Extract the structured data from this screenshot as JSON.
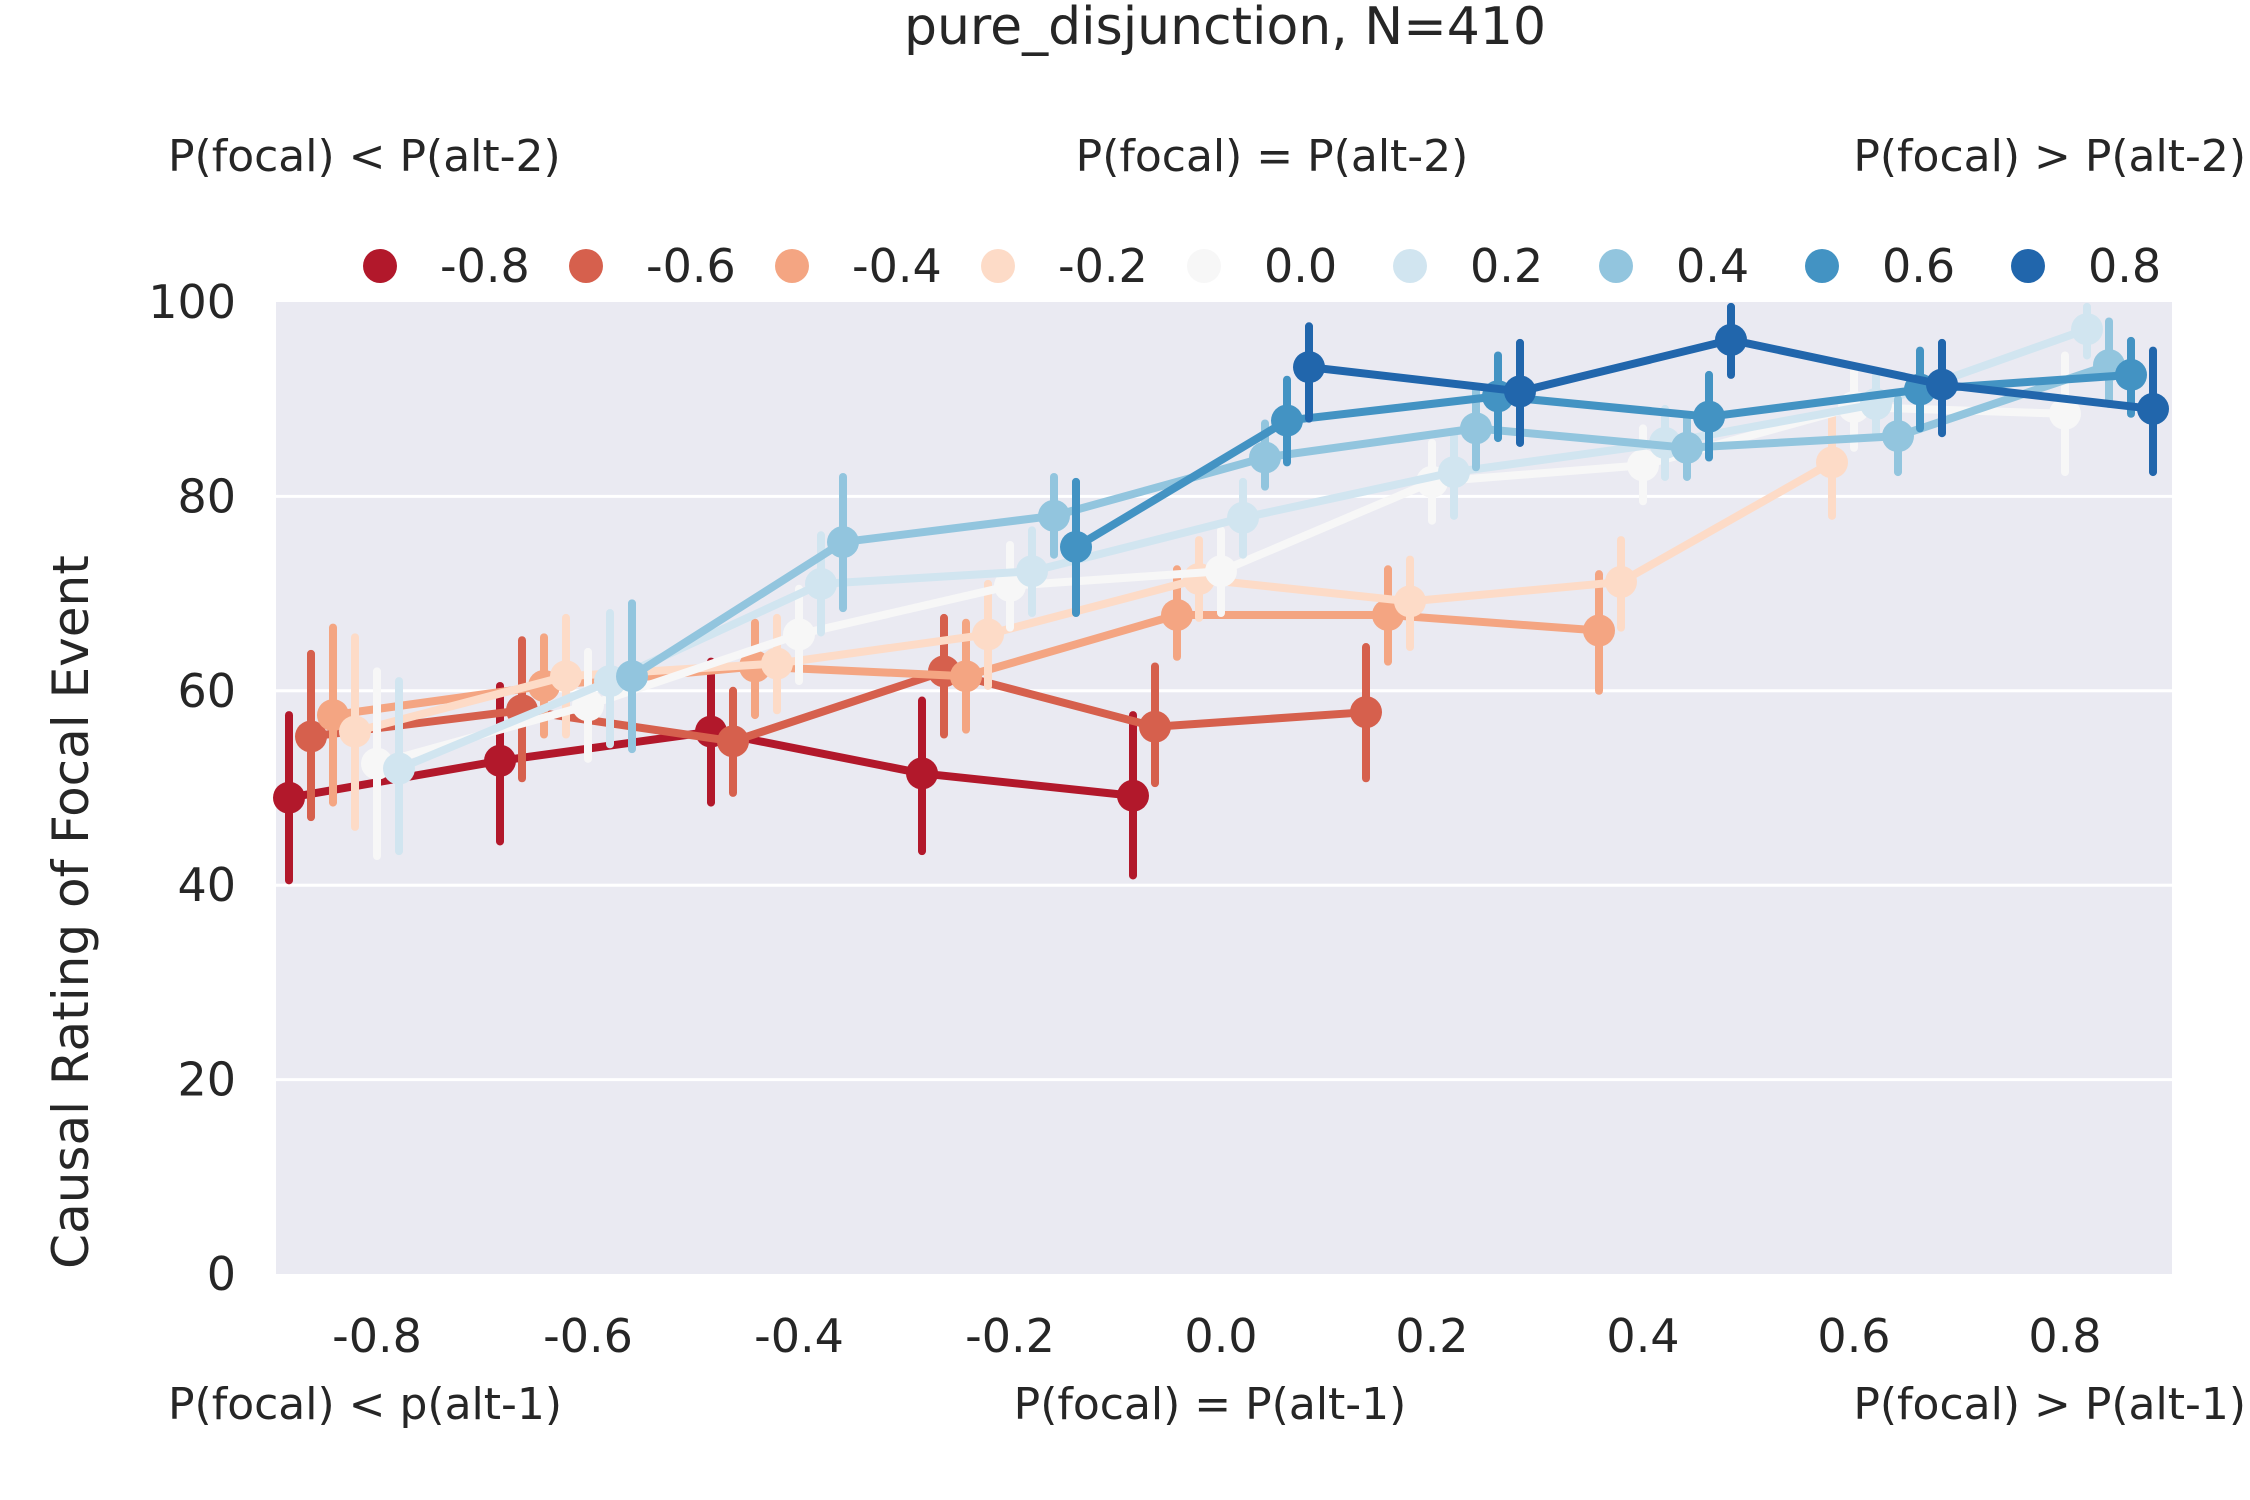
{
  "chart_data": {
    "type": "line",
    "title": "pure_disjunction, N=410",
    "xlabel": "",
    "ylabel": "Causal Rating of Focal Event",
    "ylim": [
      0,
      100
    ],
    "yticks": [
      0,
      20,
      40,
      60,
      80,
      100
    ],
    "categories": [
      "-0.8",
      "-0.6",
      "-0.4",
      "-0.2",
      "0.0",
      "0.2",
      "0.4",
      "0.6",
      "0.8"
    ],
    "x": [
      -0.8,
      -0.6,
      -0.4,
      -0.2,
      0.0,
      0.2,
      0.4,
      0.6,
      0.8
    ],
    "grid": true,
    "legend_position": "top",
    "top_annotations": [
      "P(focal) < P(alt-2)",
      "P(focal) = P(alt-2)",
      "P(focal) > P(alt-2)"
    ],
    "bottom_annotations": [
      "P(focal) < p(alt-1)",
      "P(focal) = P(alt-1)",
      "P(focal) > P(alt-1)"
    ],
    "series": [
      {
        "name": "-0.8",
        "color": "#b2182b",
        "values": [
          49,
          52.8,
          55.8,
          51.5,
          49.2,
          null,
          null,
          null,
          null
        ],
        "ci": [
          [
            40.5,
            57.5
          ],
          [
            44.5,
            60.5
          ],
          [
            48.5,
            63
          ],
          [
            43.5,
            59
          ],
          [
            41,
            57.5
          ],
          null,
          null,
          null,
          null
        ]
      },
      {
        "name": "-0.6",
        "color": "#d6604d",
        "values": [
          55.3,
          58,
          54.8,
          62,
          56.3,
          57.8,
          null,
          null,
          null
        ],
        "ci": [
          [
            47,
            63.8
          ],
          [
            51,
            65.2
          ],
          [
            49.5,
            60
          ],
          [
            55.5,
            67.5
          ],
          [
            50.5,
            62.5
          ],
          [
            51,
            64.5
          ],
          null,
          null,
          null
        ]
      },
      {
        "name": "-0.4",
        "color": "#f4a582",
        "values": [
          57.5,
          60.5,
          62.5,
          61.5,
          67.8,
          67.8,
          66.2,
          null,
          null
        ],
        "ci": [
          [
            48.5,
            66.5
          ],
          [
            55.5,
            65.5
          ],
          [
            57.5,
            67
          ],
          [
            56,
            67
          ],
          [
            63.5,
            72.5
          ],
          [
            63,
            72.5
          ],
          [
            60,
            72
          ],
          null,
          null
        ]
      },
      {
        "name": "-0.2",
        "color": "#fddbc7",
        "values": [
          55.8,
          61.5,
          62.8,
          65.8,
          71.5,
          69.2,
          71.2,
          83.5,
          null
        ],
        "ci": [
          [
            46,
            65.5
          ],
          [
            55.5,
            67.5
          ],
          [
            58,
            67.5
          ],
          [
            60.5,
            71
          ],
          [
            67.5,
            75.5
          ],
          [
            64.5,
            73.5
          ],
          [
            66.5,
            75.5
          ],
          [
            78,
            88.5
          ],
          null
        ]
      },
      {
        "name": "0.0",
        "color": "#f7f7f7",
        "values": [
          52.5,
          58.5,
          65.8,
          70.8,
          72.3,
          81.5,
          83.2,
          89.2,
          88.5
        ],
        "ci": [
          [
            43,
            62
          ],
          [
            53,
            64
          ],
          [
            61,
            70.5
          ],
          [
            66.5,
            75
          ],
          [
            68,
            76.5
          ],
          [
            77.5,
            85.5
          ],
          [
            79.5,
            87
          ],
          [
            85,
            93
          ],
          [
            82.5,
            94.5
          ]
        ]
      },
      {
        "name": "0.2",
        "color": "#d1e5f0",
        "values": [
          52,
          61,
          71,
          72.3,
          77.8,
          82.5,
          85.5,
          89.5,
          97.2
        ],
        "ci": [
          [
            43.5,
            61
          ],
          [
            54.5,
            68
          ],
          [
            66,
            76
          ],
          [
            68,
            76.5
          ],
          [
            74,
            81.5
          ],
          [
            78,
            86.5
          ],
          [
            82,
            89
          ],
          [
            86.5,
            92.5
          ],
          [
            94.5,
            99.5
          ]
        ]
      },
      {
        "name": "0.4",
        "color": "#92c5de",
        "values": [
          null,
          61.5,
          75.3,
          78,
          84,
          87,
          85,
          86.2,
          93.5
        ],
        "ci": [
          null,
          [
            54,
            69
          ],
          [
            68.5,
            82
          ],
          [
            74,
            82
          ],
          [
            81,
            87.5
          ],
          [
            83,
            91
          ],
          [
            82,
            88
          ],
          [
            82.5,
            90
          ],
          [
            89.5,
            98
          ]
        ]
      },
      {
        "name": "0.6",
        "color": "#4393c3",
        "values": [
          null,
          null,
          null,
          74.8,
          87.8,
          90.3,
          88.2,
          91,
          92.5
        ],
        "ci": [
          null,
          null,
          null,
          [
            68,
            81.5
          ],
          [
            83.5,
            92
          ],
          [
            86,
            94.5
          ],
          [
            84,
            92.5
          ],
          [
            87,
            95
          ],
          [
            88.5,
            96
          ]
        ]
      },
      {
        "name": "0.8",
        "color": "#2166ac",
        "values": [
          null,
          null,
          null,
          null,
          93.3,
          90.8,
          96.1,
          91.5,
          89
        ],
        "ci": [
          null,
          null,
          null,
          null,
          [
            88,
            97.5
          ],
          [
            85.5,
            95.8
          ],
          [
            92.5,
            99.5
          ],
          [
            86.5,
            95.8
          ],
          [
            82.5,
            95
          ]
        ]
      }
    ]
  }
}
